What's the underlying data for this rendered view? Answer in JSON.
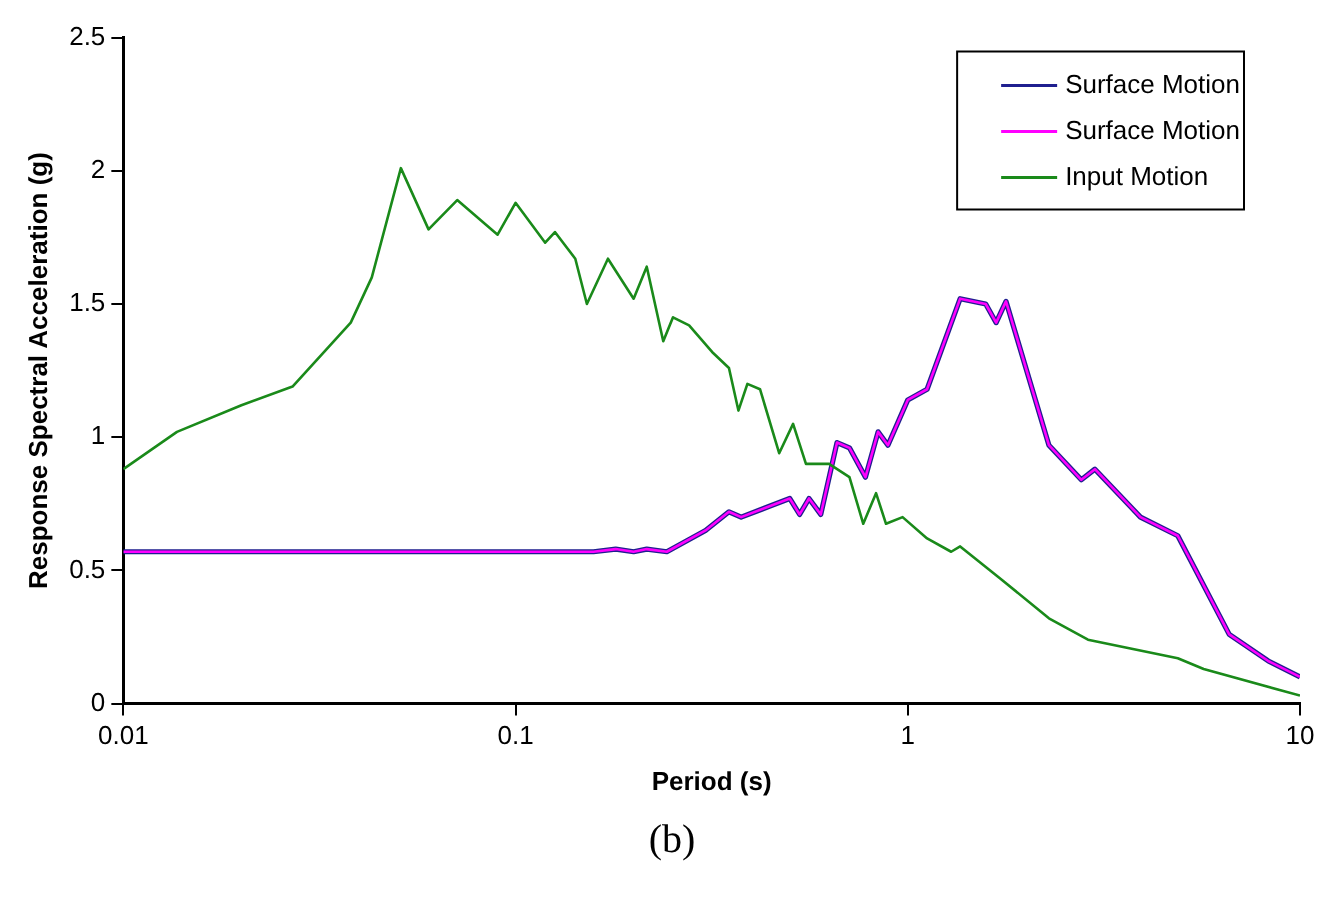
{
  "chart_data": {
    "type": "line",
    "xlabel": "Period (s)",
    "ylabel": "Response Spectral Acceleration (g)",
    "annotations": [
      "(b)"
    ],
    "log": "x",
    "xlim": [
      0.01,
      10
    ],
    "xticks": [
      0.01,
      0.1,
      1,
      10
    ],
    "ylim": [
      0,
      2.5
    ],
    "yticks": [
      0,
      0.5,
      1,
      1.5,
      2,
      2.5
    ],
    "grid": false,
    "legend": "top right",
    "marker": "none",
    "line_style": "solid",
    "series": [
      {
        "name": "Surface Motion",
        "color": "#1f1f8f",
        "x": [
          0.01,
          0.158,
          0.18,
          0.2,
          0.216,
          0.243,
          0.305,
          0.35,
          0.376,
          0.5,
          0.53,
          0.56,
          0.6,
          0.66,
          0.71,
          0.78,
          0.84,
          0.89,
          1.0,
          1.12,
          1.36,
          1.58,
          1.68,
          1.78,
          2.29,
          2.77,
          3.0,
          3.92,
          4.88,
          6.6,
          8.3,
          10
        ],
        "values": [
          0.57,
          0.57,
          0.58,
          0.57,
          0.58,
          0.57,
          0.65,
          0.72,
          0.7,
          0.77,
          0.71,
          0.77,
          0.71,
          0.98,
          0.96,
          0.85,
          1.02,
          0.97,
          1.14,
          1.18,
          1.52,
          1.5,
          1.43,
          1.51,
          0.97,
          0.84,
          0.88,
          0.7,
          0.63,
          0.26,
          0.16,
          0.1
        ]
      },
      {
        "name": "Surface Motion",
        "color": "#ff00ff",
        "x": [
          0.01,
          0.158,
          0.18,
          0.2,
          0.216,
          0.243,
          0.305,
          0.35,
          0.376,
          0.5,
          0.53,
          0.56,
          0.6,
          0.66,
          0.71,
          0.78,
          0.84,
          0.89,
          1.0,
          1.12,
          1.36,
          1.58,
          1.68,
          1.78,
          2.29,
          2.77,
          3.0,
          3.92,
          4.88,
          6.6,
          8.3,
          10
        ],
        "values": [
          0.57,
          0.57,
          0.58,
          0.57,
          0.58,
          0.57,
          0.65,
          0.72,
          0.7,
          0.77,
          0.71,
          0.77,
          0.71,
          0.98,
          0.96,
          0.85,
          1.02,
          0.97,
          1.14,
          1.18,
          1.52,
          1.5,
          1.43,
          1.51,
          0.97,
          0.84,
          0.88,
          0.7,
          0.63,
          0.26,
          0.16,
          0.1
        ]
      },
      {
        "name": "Input Motion",
        "color": "#1a8a1a",
        "x": [
          0.01,
          0.0137,
          0.02,
          0.027,
          0.038,
          0.043,
          0.051,
          0.06,
          0.071,
          0.09,
          0.1,
          0.119,
          0.126,
          0.142,
          0.152,
          0.172,
          0.2,
          0.216,
          0.238,
          0.252,
          0.277,
          0.317,
          0.35,
          0.37,
          0.39,
          0.42,
          0.47,
          0.51,
          0.55,
          0.63,
          0.71,
          0.77,
          0.83,
          0.88,
          0.97,
          1.12,
          1.29,
          1.36,
          1.72,
          2.29,
          2.88,
          4.88,
          5.68,
          10
        ],
        "values": [
          0.88,
          1.02,
          1.12,
          1.19,
          1.43,
          1.6,
          2.01,
          1.78,
          1.89,
          1.76,
          1.88,
          1.73,
          1.77,
          1.67,
          1.5,
          1.67,
          1.52,
          1.64,
          1.36,
          1.45,
          1.42,
          1.32,
          1.26,
          1.1,
          1.2,
          1.18,
          0.94,
          1.05,
          0.9,
          0.9,
          0.85,
          0.675,
          0.79,
          0.675,
          0.7,
          0.62,
          0.57,
          0.59,
          0.47,
          0.32,
          0.24,
          0.17,
          0.13,
          0.03
        ]
      }
    ]
  }
}
